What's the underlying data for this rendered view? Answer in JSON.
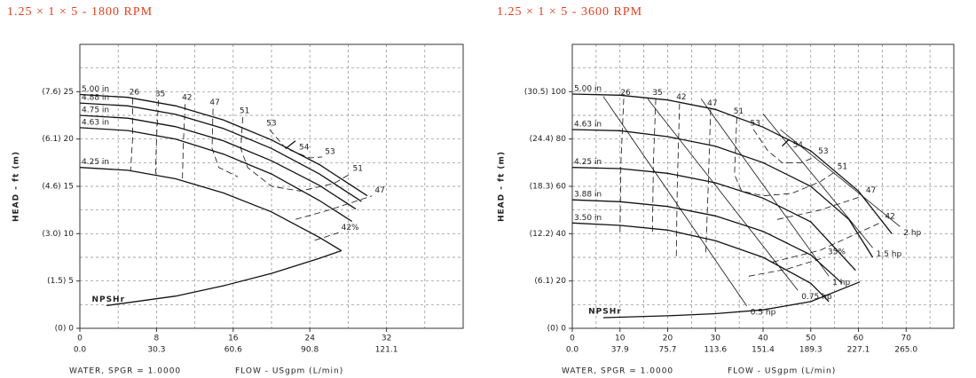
{
  "chart_data": [
    {
      "type": "line",
      "title": "1.25 × 1 × 5 - 1800 RPM",
      "ylabel": "HEAD - ft (m)",
      "xlabel": "FLOW - USgpm (L/min)",
      "note": "WATER, SPGR = 1.0000",
      "xlim": [
        0,
        40
      ],
      "ylim": [
        0,
        30
      ],
      "grid": true,
      "xticks": [
        0,
        8,
        16,
        24,
        32
      ],
      "x2ticks": [
        {
          "value": 0,
          "label": "0.0"
        },
        {
          "value": 8,
          "label": "30.3"
        },
        {
          "value": 16,
          "label": "60.6"
        },
        {
          "value": 24,
          "label": "90.8"
        },
        {
          "value": 32,
          "label": "121.1"
        }
      ],
      "yticks": [
        {
          "value": 0,
          "label": "(0) 0"
        },
        {
          "value": 5,
          "label": "(1.5) 5"
        },
        {
          "value": 10,
          "label": "(3.0) 10"
        },
        {
          "value": 15,
          "label": "(4.6) 15"
        },
        {
          "value": 20,
          "label": "(6.1) 20"
        },
        {
          "value": 25,
          "label": "(7.6) 25"
        }
      ],
      "xminor": [
        4,
        12,
        20,
        28,
        36
      ],
      "yminor": [
        2.5,
        7.5,
        12.5,
        17.5,
        22.5,
        27.5
      ],
      "series": [
        {
          "name": "5.00 in",
          "color": "#111",
          "line_style": "solid",
          "label_at": "start",
          "x": [
            0,
            5,
            10,
            15,
            20,
            25,
            30
          ],
          "values": [
            24.7,
            24.4,
            23.5,
            22.0,
            19.9,
            17.3,
            14.0
          ]
        },
        {
          "name": "4.88 in",
          "color": "#111",
          "line_style": "solid",
          "label_at": "start",
          "x": [
            0,
            5,
            10,
            15,
            20,
            25,
            29.4
          ],
          "values": [
            23.8,
            23.5,
            22.6,
            21.1,
            19.0,
            16.3,
            13.4
          ]
        },
        {
          "name": "4.75 in",
          "color": "#111",
          "line_style": "solid",
          "label_at": "start",
          "x": [
            0,
            5,
            10,
            15,
            20,
            25,
            28.8
          ],
          "values": [
            22.5,
            22.2,
            21.3,
            19.8,
            17.7,
            15.1,
            12.6
          ]
        },
        {
          "name": "4.63 in",
          "color": "#111",
          "line_style": "solid",
          "label_at": "start",
          "x": [
            0,
            5,
            10,
            15,
            20,
            25,
            28.4
          ],
          "values": [
            21.2,
            20.9,
            20.0,
            18.4,
            16.3,
            13.5,
            11.3
          ]
        },
        {
          "name": "4.25 in",
          "color": "#111",
          "line_style": "solid",
          "label_at": "start",
          "x": [
            0,
            5,
            10,
            15,
            20,
            25,
            27.3
          ],
          "values": [
            17.0,
            16.7,
            15.8,
            14.3,
            12.3,
            9.6,
            8.2
          ]
        },
        {
          "name": "26",
          "color": "#111",
          "line_style": "dashed",
          "label_at": "start",
          "x": [
            5.5,
            5.5,
            5.3
          ],
          "values": [
            24.3,
            20,
            16.7
          ]
        },
        {
          "name": "35",
          "color": "#111",
          "line_style": "dashed",
          "label_at": "start",
          "x": [
            8.2,
            8.0,
            7.9
          ],
          "values": [
            24.1,
            20,
            16.3
          ]
        },
        {
          "name": "42",
          "color": "#111",
          "line_style": "dashed",
          "label_at": "start",
          "end_label": "42%",
          "x": [
            11,
            10.8,
            10.7,
            null,
            24.5,
            27
          ],
          "values": [
            23.7,
            19.5,
            15.7,
            null,
            9.3,
            10.1
          ]
        },
        {
          "name": "47",
          "color": "#111",
          "line_style": "dashed",
          "label_at": "start",
          "end_label": "47",
          "x": [
            13.9,
            13.8,
            14.5,
            16.5,
            null,
            22.5,
            26,
            30.5
          ],
          "values": [
            23.2,
            19,
            17,
            16,
            null,
            11.5,
            12.5,
            14
          ]
        },
        {
          "name": "51",
          "color": "#111",
          "line_style": "dashed",
          "label_at": "start",
          "end_label": "51",
          "x": [
            17,
            16.8,
            17.5,
            20,
            23,
            26.5,
            28.2
          ],
          "values": [
            22.3,
            19,
            17,
            15,
            14.5,
            15.3,
            16.3
          ]
        },
        {
          "name": "53",
          "color": "#111",
          "line_style": "dashed",
          "label_at": "start",
          "end_label": "53",
          "x": [
            19.8,
            21.5,
            24,
            25.3
          ],
          "values": [
            21,
            19,
            18,
            18.1
          ]
        },
        {
          "name": "54",
          "color": "#111",
          "line_style": "solid",
          "label_at": "end",
          "x": [
            21.5,
            22.5
          ],
          "values": [
            19,
            19.8
          ]
        },
        {
          "name": "NPSHr",
          "color": "#111",
          "line_style": "solid",
          "label_at": "start",
          "x": [
            2.8,
            10,
            15,
            20,
            25,
            27.3
          ],
          "values": [
            2.4,
            3.4,
            4.5,
            5.8,
            7.4,
            8.2
          ]
        }
      ]
    },
    {
      "type": "line",
      "title": "1.25 × 1 × 5 - 3600 RPM",
      "ylabel": "HEAD - ft (m)",
      "xlabel": "FLOW - USgpm (L/min)",
      "note": "WATER, SPGR = 1.0000",
      "xlim": [
        0,
        80
      ],
      "ylim": [
        0,
        120
      ],
      "grid": true,
      "xticks": [
        0,
        10,
        20,
        30,
        40,
        50,
        60,
        70
      ],
      "x2ticks": [
        {
          "value": 0,
          "label": "0.0"
        },
        {
          "value": 10,
          "label": "37.9"
        },
        {
          "value": 20,
          "label": "75.7"
        },
        {
          "value": 30,
          "label": "113.6"
        },
        {
          "value": 40,
          "label": "151.4"
        },
        {
          "value": 50,
          "label": "189.3"
        },
        {
          "value": 60,
          "label": "227.1"
        },
        {
          "value": 70,
          "label": "265.0"
        }
      ],
      "yticks": [
        {
          "value": 0,
          "label": "(0) 0"
        },
        {
          "value": 20,
          "label": "(6.1) 20"
        },
        {
          "value": 40,
          "label": "(12.2) 40"
        },
        {
          "value": 60,
          "label": "(18.3) 60"
        },
        {
          "value": 80,
          "label": "(24.4) 80"
        },
        {
          "value": 100,
          "label": "(30.5) 100"
        }
      ],
      "xminor": [
        5,
        15,
        25,
        35,
        45,
        55,
        65,
        75
      ],
      "yminor": [
        10,
        30,
        50,
        70,
        90,
        110
      ],
      "series": [
        {
          "name": "5.00 in",
          "color": "#111",
          "line_style": "solid",
          "label_at": "start",
          "x": [
            0,
            10,
            20,
            30,
            40,
            50,
            60,
            67
          ],
          "values": [
            99,
            98.5,
            96.5,
            92.5,
            85,
            75,
            58,
            40
          ]
        },
        {
          "name": "4.63 in",
          "color": "#111",
          "line_style": "solid",
          "label_at": "start",
          "x": [
            0,
            10,
            20,
            30,
            40,
            50,
            58,
            63
          ],
          "values": [
            84,
            83.5,
            81,
            77,
            70,
            60,
            46,
            30
          ]
        },
        {
          "name": "4.25 in",
          "color": "#111",
          "line_style": "solid",
          "label_at": "start",
          "x": [
            0,
            10,
            20,
            30,
            40,
            50,
            59.4
          ],
          "values": [
            68,
            67.5,
            65.5,
            61.5,
            55,
            45,
            24.5
          ]
        },
        {
          "name": "3.88 in",
          "color": "#111",
          "line_style": "solid",
          "label_at": "start",
          "x": [
            0,
            10,
            20,
            30,
            40,
            50,
            56.6
          ],
          "values": [
            54.3,
            53.5,
            51.5,
            47.5,
            41,
            31,
            19
          ]
        },
        {
          "name": "3.50 in",
          "color": "#111",
          "line_style": "solid",
          "label_at": "start",
          "x": [
            0,
            10,
            20,
            30,
            40,
            50,
            53.8
          ],
          "values": [
            44.5,
            43.5,
            41.5,
            37,
            30,
            19,
            11.3
          ]
        },
        {
          "name": "0.5 hp",
          "color": "#111",
          "line_style": "thin",
          "label_at": "end",
          "x": [
            6.5,
            36.6
          ],
          "values": [
            98,
            9.4
          ]
        },
        {
          "name": "0.75 hp",
          "color": "#111",
          "line_style": "thin",
          "label_at": "end",
          "x": [
            15.8,
            47.3
          ],
          "values": [
            97,
            16
          ]
        },
        {
          "name": "1 hp",
          "color": "#111",
          "line_style": "thin",
          "label_at": "end",
          "x": [
            27,
            53.8
          ],
          "values": [
            97,
            22
          ]
        },
        {
          "name": "1.5 hp",
          "color": "#111",
          "line_style": "thin",
          "label_at": "end",
          "x": [
            40,
            63
          ],
          "values": [
            90.6,
            34
          ]
        },
        {
          "name": "2 hp",
          "color": "#111",
          "line_style": "thin",
          "label_at": "end",
          "x": [
            43.6,
            68.7
          ],
          "values": [
            84,
            43
          ]
        },
        {
          "name": "26",
          "color": "#111",
          "line_style": "dashed",
          "label_at": "start",
          "x": [
            10.8,
            10.2,
            10
          ],
          "values": [
            97,
            70,
            40
          ]
        },
        {
          "name": "35",
          "color": "#111",
          "line_style": "dashed",
          "label_at": "start",
          "end_label": "35%",
          "x": [
            17.5,
            17,
            16.8,
            null,
            37,
            45,
            53
          ],
          "values": [
            97,
            70,
            40,
            null,
            22,
            25,
            30
          ]
        },
        {
          "name": "42",
          "color": "#111",
          "line_style": "dashed",
          "label_at": "start",
          "end_label": "42",
          "x": [
            22.5,
            22,
            21.8,
            null,
            42,
            52,
            65
          ],
          "values": [
            95,
            60,
            30,
            null,
            28,
            33,
            45
          ]
        },
        {
          "name": "47",
          "color": "#111",
          "line_style": "dashed",
          "label_at": "start",
          "end_label": "47",
          "x": [
            29,
            28.5,
            28,
            null,
            43,
            52,
            61
          ],
          "values": [
            92.5,
            60,
            32,
            null,
            46,
            50,
            56
          ]
        },
        {
          "name": "51",
          "color": "#111",
          "line_style": "dashed",
          "label_at": "start",
          "end_label": "51",
          "x": [
            34.5,
            34,
            35.5,
            40,
            46,
            52,
            55
          ],
          "values": [
            89,
            65,
            58,
            56,
            57,
            62,
            66
          ]
        },
        {
          "name": "53",
          "color": "#111",
          "line_style": "dashed",
          "label_at": "start",
          "end_label": "53",
          "x": [
            38,
            41,
            44,
            48,
            51
          ],
          "values": [
            84,
            75,
            70,
            70,
            72.5
          ]
        },
        {
          "name": "54",
          "color": "#111",
          "line_style": "solid",
          "label_at": "end",
          "x": [
            44,
            45.5
          ],
          "values": [
            77,
            80
          ]
        },
        {
          "name": "NPSHr",
          "color": "#111",
          "line_style": "solid",
          "label_at": "start",
          "x": [
            6.5,
            20,
            30,
            40,
            50,
            60.3
          ],
          "values": [
            4.5,
            5.3,
            6.2,
            7.8,
            11.3,
            19.6
          ]
        }
      ]
    }
  ]
}
